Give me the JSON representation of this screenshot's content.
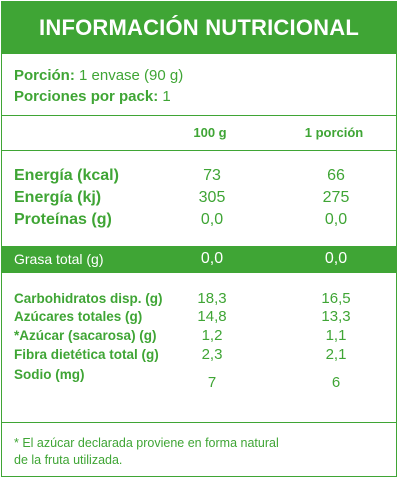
{
  "title": "INFORMACIÓN NUTRICIONAL",
  "portion": {
    "label": "Porción:",
    "value": "1 envase (90 g)",
    "pack_label": "Porciones por pack:",
    "pack_value": "1"
  },
  "columns": {
    "per100": "100 g",
    "perPortion": "1 porción"
  },
  "main_rows": [
    {
      "label": "Energía (kcal)",
      "v100": "73",
      "vportion": "66"
    },
    {
      "label": "Energía (kj)",
      "v100": "305",
      "vportion": "275"
    },
    {
      "label": "Proteínas (g)",
      "v100": "0,0",
      "vportion": "0,0"
    }
  ],
  "fat_row": {
    "label": "Grasa total (g)",
    "v100": "0,0",
    "vportion": "0,0"
  },
  "carb_rows": [
    {
      "label": "Carbohidratos disp. (g)",
      "v100": "18,3",
      "vportion": "16,5"
    },
    {
      "label": "Azúcares totales (g)",
      "v100": "14,8",
      "vportion": "13,3"
    },
    {
      "label": "*Azúcar (sacarosa) (g)",
      "v100": "1,2",
      "vportion": "1,1"
    },
    {
      "label": "Fibra dietética total (g)",
      "v100": "2,3",
      "vportion": "2,1"
    },
    {
      "label": "Sodio (mg)",
      "v100": "7",
      "vportion": "6"
    }
  ],
  "footnote_line1": "* El azúcar declarada proviene en forma natural",
  "footnote_line2": "de la fruta utilizada.",
  "colors": {
    "green": "#3fa535",
    "white": "#ffffff"
  }
}
